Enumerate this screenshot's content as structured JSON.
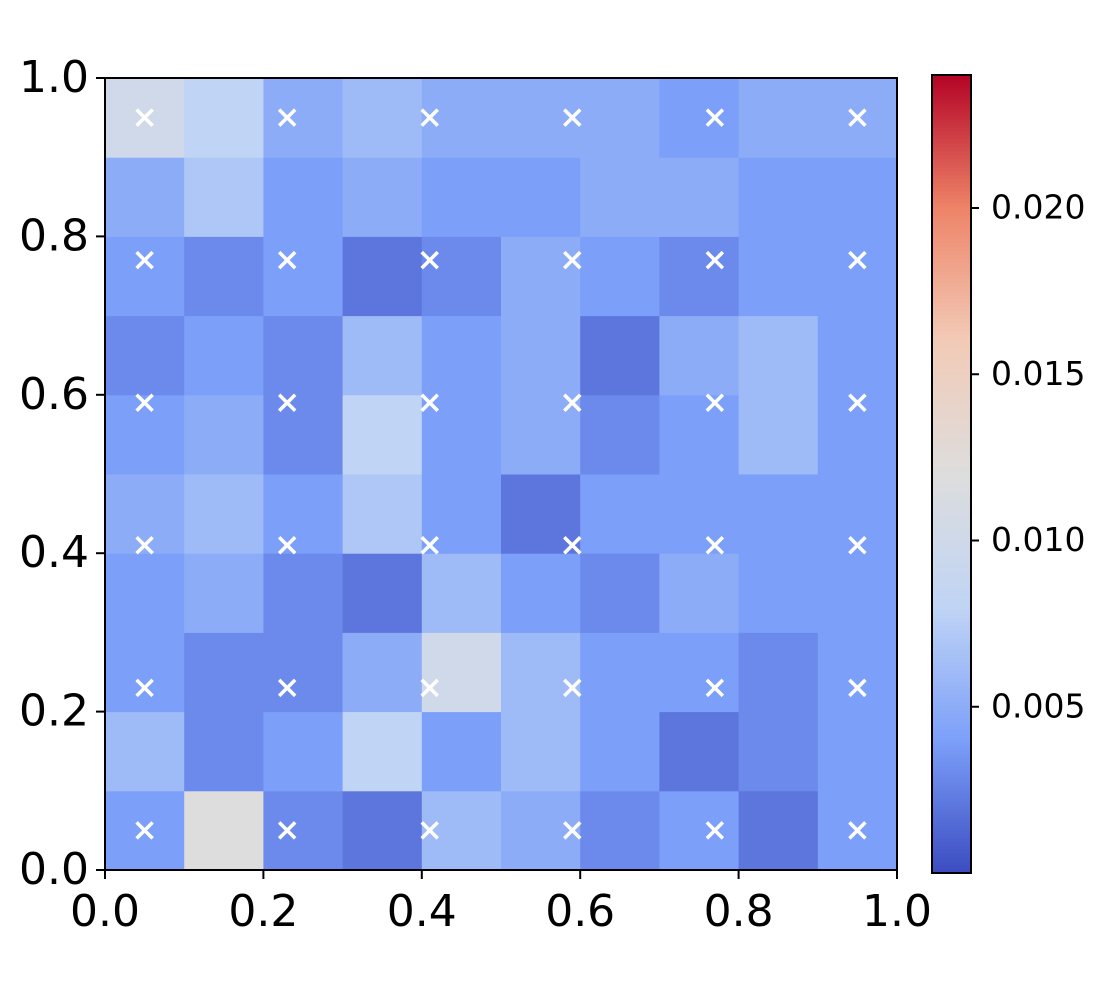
{
  "chart_data": {
    "type": "heatmap",
    "colormap": "coolwarm",
    "z_x": [
      0.05,
      0.15,
      0.25,
      0.35,
      0.45,
      0.55,
      0.65,
      0.75,
      0.85,
      0.95
    ],
    "z_y": [
      0.05,
      0.15,
      0.25,
      0.35,
      0.45,
      0.55,
      0.65,
      0.75,
      0.85,
      0.95
    ],
    "z": [
      [
        0.004,
        0.012,
        0.003,
        0.002,
        0.006,
        0.005,
        0.003,
        0.004,
        0.002,
        0.004
      ],
      [
        0.006,
        0.003,
        0.004,
        0.008,
        0.004,
        0.006,
        0.004,
        0.002,
        0.003,
        0.004
      ],
      [
        0.004,
        0.003,
        0.003,
        0.005,
        0.01,
        0.006,
        0.004,
        0.004,
        0.003,
        0.004
      ],
      [
        0.004,
        0.005,
        0.003,
        0.002,
        0.006,
        0.004,
        0.003,
        0.005,
        0.004,
        0.004
      ],
      [
        0.005,
        0.006,
        0.004,
        0.007,
        0.004,
        0.002,
        0.004,
        0.004,
        0.004,
        0.004
      ],
      [
        0.004,
        0.005,
        0.003,
        0.008,
        0.004,
        0.005,
        0.003,
        0.004,
        0.006,
        0.004
      ],
      [
        0.003,
        0.004,
        0.003,
        0.006,
        0.004,
        0.005,
        0.002,
        0.005,
        0.006,
        0.004
      ],
      [
        0.004,
        0.003,
        0.004,
        0.002,
        0.003,
        0.005,
        0.004,
        0.003,
        0.004,
        0.004
      ],
      [
        0.005,
        0.007,
        0.004,
        0.005,
        0.004,
        0.004,
        0.005,
        0.005,
        0.004,
        0.004
      ],
      [
        0.01,
        0.008,
        0.005,
        0.006,
        0.005,
        0.005,
        0.005,
        0.004,
        0.005,
        0.005
      ]
    ],
    "zlim": [
      0,
      0.024
    ],
    "cticks": [
      0.005,
      {
        "value": 0.01,
        "label": "0.010"
      },
      0.015,
      {
        "value": 0.02,
        "label": "0.020"
      }
    ],
    "points": {
      "color": "#ffffff",
      "marker": "x",
      "x": [
        0.05,
        0.23,
        0.41,
        0.59,
        0.77,
        0.95,
        0.05,
        0.23,
        0.41,
        0.59,
        0.77,
        0.95,
        0.05,
        0.23,
        0.41,
        0.59,
        0.77,
        0.95,
        0.05,
        0.23,
        0.41,
        0.59,
        0.77,
        0.95,
        0.05,
        0.23,
        0.41,
        0.59,
        0.77,
        0.95,
        0.05,
        0.23,
        0.41,
        0.59,
        0.77,
        0.95
      ],
      "y": [
        0.05,
        0.05,
        0.05,
        0.05,
        0.05,
        0.05,
        0.23,
        0.23,
        0.23,
        0.23,
        0.23,
        0.23,
        0.41,
        0.41,
        0.41,
        0.41,
        0.41,
        0.41,
        0.59,
        0.59,
        0.59,
        0.59,
        0.59,
        0.59,
        0.77,
        0.77,
        0.77,
        0.77,
        0.77,
        0.77,
        0.95,
        0.95,
        0.95,
        0.95,
        0.95,
        0.95
      ]
    },
    "xlim": [
      0,
      1
    ],
    "ylim": [
      0,
      1
    ],
    "xticks": [
      {
        "value": 0,
        "label": "0.0"
      },
      0.2,
      0.4,
      0.6,
      0.8,
      {
        "value": 1,
        "label": "1.0"
      }
    ],
    "yticks": [
      {
        "value": 0,
        "label": "0.0"
      },
      0.2,
      0.4,
      0.6,
      0.8,
      {
        "value": 1,
        "label": "1.0"
      }
    ]
  }
}
